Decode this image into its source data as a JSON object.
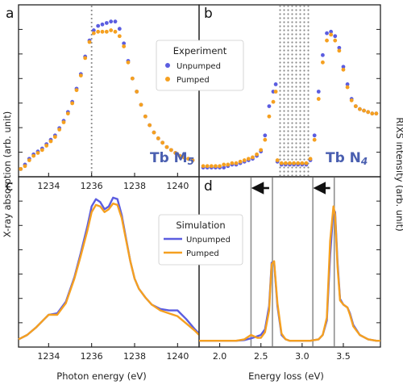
{
  "colors": {
    "unpumped": "#5b5de0",
    "pumped": "#f5a020",
    "axis": "#222222",
    "marker_line": "#909090",
    "element_label": "#4a5fb0"
  },
  "labels": {
    "ylabel_left": "X-ray absorption (arb. unit)",
    "ylabel_right": "RIXS intensity (arb. unit)",
    "xlabel_left": "Photon energy (eV)",
    "xlabel_right": "Energy loss (eV)",
    "panel_a": "a",
    "panel_b": "b",
    "panel_c": "c",
    "panel_d": "d",
    "element_a_main": "Tb M",
    "element_a_sub": "5",
    "element_b_main": "Tb N",
    "element_b_sub": "4",
    "legend_top_title": "Experiment",
    "legend_bottom_title": "Simulation",
    "series_unpumped": "Unpumped",
    "series_pumped": "Pumped"
  },
  "chart_data": [
    {
      "panel": "a",
      "type": "scatter",
      "xlim": [
        1232.6,
        1241.0
      ],
      "ylim": [
        0,
        1.1
      ],
      "xticks": [
        1234,
        1236,
        1238,
        1240
      ],
      "vline_x": 1236.0,
      "series": [
        {
          "name": "Unpumped",
          "x": [
            1232.7,
            1232.9,
            1233.1,
            1233.3,
            1233.5,
            1233.7,
            1233.9,
            1234.1,
            1234.3,
            1234.5,
            1234.7,
            1234.9,
            1235.1,
            1235.3,
            1235.5,
            1235.7,
            1235.9,
            1236.1,
            1236.3,
            1236.5,
            1236.7,
            1236.9,
            1237.1,
            1237.3,
            1237.5,
            1237.7,
            1237.9,
            1238.1,
            1238.3,
            1238.5,
            1238.7,
            1238.9,
            1239.1,
            1239.3,
            1239.5,
            1239.7,
            1239.9,
            1240.1,
            1240.3,
            1240.5,
            1240.7
          ],
          "y": [
            0.02,
            0.05,
            0.09,
            0.12,
            0.14,
            0.16,
            0.19,
            0.22,
            0.25,
            0.3,
            0.35,
            0.41,
            0.48,
            0.57,
            0.67,
            0.79,
            0.9,
            0.97,
            1.0,
            1.01,
            1.02,
            1.03,
            1.03,
            0.98,
            0.88,
            0.76,
            0.64,
            0.55,
            0.46,
            0.38,
            0.32,
            0.27,
            0.23,
            0.2,
            0.17,
            0.15,
            0.13,
            0.11,
            0.1,
            0.09,
            0.08
          ]
        },
        {
          "name": "Pumped",
          "x": [
            1232.7,
            1232.9,
            1233.1,
            1233.3,
            1233.5,
            1233.7,
            1233.9,
            1234.1,
            1234.3,
            1234.5,
            1234.7,
            1234.9,
            1235.1,
            1235.3,
            1235.5,
            1235.7,
            1235.9,
            1236.1,
            1236.3,
            1236.5,
            1236.7,
            1236.9,
            1237.1,
            1237.3,
            1237.5,
            1237.7,
            1237.9,
            1238.1,
            1238.3,
            1238.5,
            1238.7,
            1238.9,
            1239.1,
            1239.3,
            1239.5,
            1239.7,
            1239.9,
            1240.1,
            1240.3,
            1240.5,
            1240.7
          ],
          "y": [
            0.02,
            0.04,
            0.08,
            0.11,
            0.13,
            0.15,
            0.18,
            0.21,
            0.24,
            0.29,
            0.34,
            0.4,
            0.47,
            0.56,
            0.66,
            0.78,
            0.89,
            0.95,
            0.96,
            0.96,
            0.96,
            0.97,
            0.96,
            0.93,
            0.86,
            0.75,
            0.64,
            0.55,
            0.46,
            0.38,
            0.32,
            0.27,
            0.23,
            0.2,
            0.17,
            0.15,
            0.13,
            0.11,
            0.1,
            0.09,
            0.08
          ]
        }
      ]
    },
    {
      "panel": "b",
      "type": "scatter",
      "xlim": [
        1.75,
        3.95
      ],
      "ylim": [
        0,
        1.1
      ],
      "shaded_region": [
        2.7,
        3.1
      ],
      "series": [
        {
          "name": "Unpumped",
          "x": [
            1.8,
            1.85,
            1.9,
            1.95,
            2.0,
            2.05,
            2.1,
            2.15,
            2.2,
            2.25,
            2.3,
            2.35,
            2.4,
            2.45,
            2.5,
            2.55,
            2.6,
            2.65,
            2.68,
            2.7,
            2.75,
            2.8,
            2.85,
            2.9,
            2.95,
            3.0,
            3.05,
            3.1,
            3.15,
            3.2,
            3.25,
            3.3,
            3.35,
            3.4,
            3.45,
            3.5,
            3.55,
            3.6,
            3.65,
            3.7,
            3.75,
            3.8,
            3.85,
            3.9
          ],
          "y": [
            0.03,
            0.03,
            0.03,
            0.03,
            0.03,
            0.03,
            0.04,
            0.05,
            0.05,
            0.06,
            0.07,
            0.08,
            0.09,
            0.11,
            0.14,
            0.25,
            0.45,
            0.55,
            0.6,
            0.07,
            0.05,
            0.05,
            0.05,
            0.05,
            0.05,
            0.05,
            0.05,
            0.08,
            0.25,
            0.55,
            0.8,
            0.95,
            0.96,
            0.93,
            0.85,
            0.72,
            0.6,
            0.5,
            0.45,
            0.43,
            0.42,
            0.41,
            0.4,
            0.4
          ]
        },
        {
          "name": "Pumped",
          "x": [
            1.8,
            1.85,
            1.9,
            1.95,
            2.0,
            2.05,
            2.1,
            2.15,
            2.2,
            2.25,
            2.3,
            2.35,
            2.4,
            2.45,
            2.5,
            2.55,
            2.6,
            2.65,
            2.68,
            2.7,
            2.75,
            2.8,
            2.85,
            2.9,
            2.95,
            3.0,
            3.05,
            3.1,
            3.15,
            3.2,
            3.25,
            3.3,
            3.35,
            3.4,
            3.45,
            3.5,
            3.55,
            3.6,
            3.65,
            3.7,
            3.75,
            3.8,
            3.85,
            3.9
          ],
          "y": [
            0.04,
            0.04,
            0.04,
            0.04,
            0.04,
            0.05,
            0.05,
            0.06,
            0.06,
            0.07,
            0.08,
            0.09,
            0.1,
            0.12,
            0.15,
            0.22,
            0.38,
            0.48,
            0.55,
            0.08,
            0.06,
            0.06,
            0.06,
            0.06,
            0.06,
            0.06,
            0.06,
            0.09,
            0.22,
            0.5,
            0.75,
            0.9,
            0.94,
            0.9,
            0.83,
            0.7,
            0.58,
            0.49,
            0.45,
            0.43,
            0.42,
            0.41,
            0.4,
            0.4
          ]
        }
      ]
    },
    {
      "panel": "c",
      "type": "line",
      "xlim": [
        1232.6,
        1241.0
      ],
      "ylim": [
        0,
        1.1
      ],
      "xticks": [
        1234,
        1236,
        1238,
        1240
      ],
      "series": [
        {
          "name": "Unpumped",
          "x": [
            1232.6,
            1233.0,
            1233.4,
            1233.8,
            1234.0,
            1234.4,
            1234.8,
            1235.2,
            1235.5,
            1235.8,
            1236.0,
            1236.2,
            1236.4,
            1236.6,
            1236.8,
            1237.0,
            1237.2,
            1237.4,
            1237.6,
            1237.8,
            1238.0,
            1238.2,
            1238.5,
            1238.8,
            1239.2,
            1239.6,
            1240.0,
            1240.4,
            1240.8,
            1241.0
          ],
          "y": [
            0.02,
            0.05,
            0.1,
            0.16,
            0.19,
            0.2,
            0.28,
            0.45,
            0.62,
            0.8,
            0.94,
            0.99,
            0.97,
            0.92,
            0.94,
            1.0,
            0.99,
            0.88,
            0.72,
            0.56,
            0.44,
            0.37,
            0.31,
            0.26,
            0.23,
            0.22,
            0.22,
            0.16,
            0.09,
            0.06
          ]
        },
        {
          "name": "Pumped",
          "x": [
            1232.6,
            1233.0,
            1233.4,
            1233.8,
            1234.0,
            1234.4,
            1234.8,
            1235.2,
            1235.5,
            1235.8,
            1236.0,
            1236.2,
            1236.4,
            1236.6,
            1236.8,
            1237.0,
            1237.2,
            1237.4,
            1237.6,
            1237.8,
            1238.0,
            1238.2,
            1238.5,
            1238.8,
            1239.2,
            1239.6,
            1240.0,
            1240.4,
            1240.8,
            1241.0
          ],
          "y": [
            0.02,
            0.05,
            0.1,
            0.16,
            0.19,
            0.19,
            0.27,
            0.44,
            0.6,
            0.77,
            0.9,
            0.95,
            0.94,
            0.9,
            0.92,
            0.96,
            0.95,
            0.86,
            0.71,
            0.56,
            0.44,
            0.37,
            0.31,
            0.26,
            0.22,
            0.2,
            0.18,
            0.13,
            0.08,
            0.05
          ]
        }
      ]
    },
    {
      "panel": "d",
      "type": "line",
      "xlim": [
        1.75,
        3.95
      ],
      "ylim": [
        0,
        1.1
      ],
      "xticks": [
        2.0,
        2.5,
        3.0,
        3.5
      ],
      "vlines_x": [
        2.38,
        2.64,
        3.13,
        3.39
      ],
      "arrows": [
        {
          "from": 2.6,
          "to": 2.42
        },
        {
          "from": 3.34,
          "to": 3.17
        }
      ],
      "series": [
        {
          "name": "Unpumped",
          "x": [
            1.75,
            1.9,
            2.0,
            2.1,
            2.2,
            2.3,
            2.4,
            2.5,
            2.55,
            2.6,
            2.63,
            2.66,
            2.7,
            2.75,
            2.8,
            2.85,
            2.9,
            3.0,
            3.1,
            3.2,
            3.25,
            3.3,
            3.34,
            3.38,
            3.4,
            3.43,
            3.46,
            3.5,
            3.55,
            3.58,
            3.62,
            3.7,
            3.8,
            3.9,
            3.95
          ],
          "y": [
            0.01,
            0.01,
            0.01,
            0.01,
            0.01,
            0.015,
            0.03,
            0.05,
            0.09,
            0.25,
            0.55,
            0.55,
            0.25,
            0.05,
            0.02,
            0.01,
            0.01,
            0.01,
            0.01,
            0.02,
            0.05,
            0.15,
            0.6,
            0.92,
            0.9,
            0.55,
            0.3,
            0.26,
            0.24,
            0.2,
            0.12,
            0.05,
            0.02,
            0.01,
            0.01
          ]
        },
        {
          "name": "Pumped",
          "x": [
            1.75,
            1.9,
            2.0,
            2.1,
            2.2,
            2.3,
            2.38,
            2.42,
            2.46,
            2.5,
            2.55,
            2.6,
            2.63,
            2.66,
            2.7,
            2.75,
            2.8,
            2.85,
            2.9,
            3.0,
            3.1,
            3.2,
            3.25,
            3.3,
            3.34,
            3.38,
            3.4,
            3.43,
            3.46,
            3.5,
            3.55,
            3.58,
            3.62,
            3.7,
            3.8,
            3.9,
            3.95
          ],
          "y": [
            0.01,
            0.01,
            0.01,
            0.01,
            0.01,
            0.02,
            0.05,
            0.04,
            0.03,
            0.03,
            0.07,
            0.22,
            0.54,
            0.56,
            0.27,
            0.06,
            0.02,
            0.01,
            0.01,
            0.01,
            0.01,
            0.02,
            0.05,
            0.17,
            0.7,
            0.94,
            0.88,
            0.52,
            0.29,
            0.26,
            0.24,
            0.19,
            0.11,
            0.05,
            0.02,
            0.01,
            0.01
          ]
        }
      ]
    }
  ]
}
